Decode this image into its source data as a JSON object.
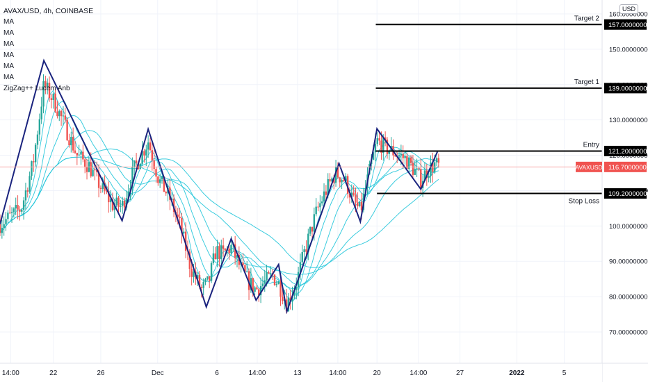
{
  "chart_data": {
    "type": "candlestick",
    "title": "AVAX/USD, 4h, COINBASE",
    "symbol": "AVAXUSD",
    "currency": "USD",
    "legend_entries": [
      "MA",
      "MA",
      "MA",
      "MA",
      "MA",
      "MA",
      "ZigZag++ Lucem Anb"
    ],
    "x_tick_labels": [
      "14:00",
      "22",
      "26",
      "Dec",
      "6",
      "14:00",
      "13",
      "14:00",
      "20",
      "14:00",
      "27",
      "2022",
      "5"
    ],
    "y_ticks": [
      70,
      80,
      90,
      100,
      110,
      120,
      130,
      140,
      150,
      160
    ],
    "y_tick_labels": [
      "70.00000000",
      "80.00000000",
      "90.00000000",
      "100.00000000",
      "110.00000000",
      "120.00000000",
      "130.00000000",
      "140.00000000",
      "150.00000000",
      "160.00000000"
    ],
    "ylim": [
      66.4,
      165.4
    ],
    "x_range_days": [
      0,
      51
    ],
    "last_price": {
      "label": "AVAXUSD",
      "value": 116.7,
      "value_label": "116.70000000",
      "color": "#f05350"
    },
    "levels": [
      {
        "name": "Target 2",
        "value": 157.0,
        "value_label": "157.00000000",
        "from_day": 31.7
      },
      {
        "name": "Target 1",
        "value": 139.0,
        "value_label": "139.00000000",
        "from_day": 31.7
      },
      {
        "name": "Entry",
        "value": 121.2,
        "value_label": "121.20000000",
        "from_day": 31.7
      },
      {
        "name": "Stop Loss",
        "value": 109.2,
        "value_label": "109.20000000",
        "from_day": 31.8
      }
    ],
    "zigzag": [
      [
        0.0,
        100.5
      ],
      [
        3.7,
        146.8
      ],
      [
        10.3,
        101.5
      ],
      [
        12.5,
        127.4
      ],
      [
        17.4,
        77.1
      ],
      [
        19.5,
        96.4
      ],
      [
        21.6,
        79.0
      ],
      [
        23.5,
        89.1
      ],
      [
        24.2,
        75.8
      ],
      [
        28.6,
        117.7
      ],
      [
        30.4,
        101.2
      ],
      [
        31.8,
        127.5
      ],
      [
        35.5,
        110.4
      ],
      [
        36.9,
        121.0
      ]
    ],
    "candles_anchor_path": [
      [
        0.0,
        100.5
      ],
      [
        1.8,
        105.0
      ],
      [
        2.8,
        118.0
      ],
      [
        3.7,
        140.0
      ],
      [
        4.6,
        135.0
      ],
      [
        5.5,
        128.0
      ],
      [
        6.5,
        120.0
      ],
      [
        7.5,
        117.0
      ],
      [
        8.5,
        111.0
      ],
      [
        9.5,
        106.0
      ],
      [
        10.3,
        105.5
      ],
      [
        11.3,
        116.0
      ],
      [
        12.5,
        124.0
      ],
      [
        13.4,
        113.0
      ],
      [
        14.3,
        108.0
      ],
      [
        15.2,
        100.0
      ],
      [
        16.1,
        88.0
      ],
      [
        17.0,
        82.0
      ],
      [
        17.6,
        84.0
      ],
      [
        18.2,
        93.0
      ],
      [
        18.8,
        92.0
      ],
      [
        19.5,
        94.0
      ],
      [
        20.3,
        88.0
      ],
      [
        21.0,
        84.0
      ],
      [
        21.6,
        82.0
      ],
      [
        22.3,
        84.0
      ],
      [
        23.0,
        86.0
      ],
      [
        23.6,
        83.0
      ],
      [
        24.2,
        78.0
      ],
      [
        25.0,
        84.0
      ],
      [
        25.8,
        94.0
      ],
      [
        26.7,
        104.0
      ],
      [
        27.5,
        110.0
      ],
      [
        28.3,
        115.0
      ],
      [
        29.1,
        113.0
      ],
      [
        29.8,
        107.0
      ],
      [
        30.4,
        104.0
      ],
      [
        31.0,
        113.0
      ],
      [
        31.8,
        124.0
      ],
      [
        32.6,
        122.0
      ],
      [
        33.4,
        120.5
      ],
      [
        34.2,
        119.0
      ],
      [
        35.0,
        115.5
      ],
      [
        35.5,
        113.0
      ],
      [
        36.1,
        116.0
      ],
      [
        36.7,
        117.5
      ],
      [
        37.1,
        116.7
      ]
    ],
    "ma_color": "#26c6da",
    "zigzag_color": "#1a237e",
    "up_color": "#26a69a",
    "down_color": "#ef5350",
    "grid": true
  }
}
